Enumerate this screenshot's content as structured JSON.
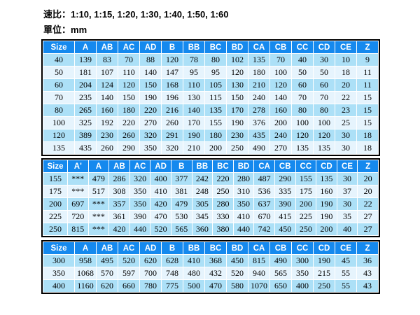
{
  "header": {
    "speed_ratio_label": "速比：",
    "speed_ratio_values": "1:10, 1:15, 1:20, 1:30, 1:40, 1:50, 1:60",
    "unit_label": "單位：",
    "unit_value": "mm"
  },
  "colors": {
    "header_bg": "#1589ee",
    "header_text": "#ffffff",
    "row_medium": "#ace0f7",
    "row_light": "#e6f4fd",
    "table_border": "#000000"
  },
  "tables": [
    {
      "name": "sizes-40-135",
      "headers": [
        "Size",
        "A",
        "AB",
        "AC",
        "AD",
        "B",
        "BB",
        "BC",
        "BD",
        "CA",
        "CB",
        "CC",
        "CD",
        "CE",
        "Z"
      ],
      "rows": [
        [
          "40",
          "139",
          "83",
          "70",
          "88",
          "120",
          "78",
          "80",
          "102",
          "135",
          "70",
          "40",
          "30",
          "10",
          "9"
        ],
        [
          "50",
          "181",
          "107",
          "110",
          "140",
          "147",
          "95",
          "95",
          "120",
          "180",
          "100",
          "50",
          "50",
          "18",
          "11"
        ],
        [
          "60",
          "204",
          "124",
          "120",
          "150",
          "168",
          "110",
          "105",
          "130",
          "210",
          "120",
          "60",
          "60",
          "20",
          "11"
        ],
        [
          "70",
          "235",
          "140",
          "150",
          "190",
          "196",
          "130",
          "115",
          "150",
          "240",
          "140",
          "70",
          "70",
          "22",
          "15"
        ],
        [
          "80",
          "265",
          "160",
          "180",
          "220",
          "216",
          "140",
          "135",
          "170",
          "278",
          "160",
          "80",
          "80",
          "23",
          "15"
        ],
        [
          "100",
          "325",
          "192",
          "220",
          "270",
          "260",
          "170",
          "155",
          "190",
          "376",
          "200",
          "100",
          "100",
          "25",
          "15"
        ],
        [
          "120",
          "389",
          "230",
          "260",
          "320",
          "291",
          "190",
          "180",
          "230",
          "435",
          "240",
          "120",
          "120",
          "30",
          "18"
        ],
        [
          "135",
          "435",
          "260",
          "290",
          "350",
          "320",
          "210",
          "200",
          "250",
          "490",
          "270",
          "135",
          "135",
          "30",
          "18"
        ]
      ]
    },
    {
      "name": "sizes-155-250",
      "headers": [
        "Size",
        "A'",
        "A",
        "AB",
        "AC",
        "AD",
        "B",
        "BB",
        "BC",
        "BD",
        "CA",
        "CB",
        "CC",
        "CD",
        "CE",
        "Z"
      ],
      "rows": [
        [
          "155",
          "***",
          "479",
          "286",
          "320",
          "400",
          "377",
          "242",
          "220",
          "280",
          "487",
          "290",
          "155",
          "135",
          "30",
          "20"
        ],
        [
          "175",
          "***",
          "517",
          "308",
          "350",
          "410",
          "381",
          "248",
          "250",
          "310",
          "536",
          "335",
          "175",
          "160",
          "37",
          "20"
        ],
        [
          "200",
          "697",
          "***",
          "357",
          "350",
          "420",
          "479",
          "305",
          "280",
          "350",
          "637",
          "390",
          "200",
          "190",
          "30",
          "22"
        ],
        [
          "225",
          "720",
          "***",
          "361",
          "390",
          "470",
          "530",
          "345",
          "330",
          "410",
          "670",
          "415",
          "225",
          "190",
          "35",
          "27"
        ],
        [
          "250",
          "815",
          "***",
          "420",
          "440",
          "520",
          "565",
          "360",
          "380",
          "440",
          "742",
          "450",
          "250",
          "200",
          "40",
          "27"
        ]
      ]
    },
    {
      "name": "sizes-300-400",
      "headers": [
        "Size",
        "A",
        "AB",
        "AC",
        "AD",
        "B",
        "BB",
        "BC",
        "BD",
        "CA",
        "CB",
        "CC",
        "CD",
        "CE",
        "Z"
      ],
      "rows": [
        [
          "300",
          "958",
          "495",
          "520",
          "620",
          "628",
          "410",
          "368",
          "450",
          "815",
          "490",
          "300",
          "190",
          "45",
          "36"
        ],
        [
          "350",
          "1068",
          "570",
          "597",
          "700",
          "748",
          "480",
          "432",
          "520",
          "940",
          "565",
          "350",
          "215",
          "55",
          "43"
        ],
        [
          "400",
          "1160",
          "620",
          "660",
          "780",
          "775",
          "500",
          "470",
          "580",
          "1070",
          "650",
          "400",
          "250",
          "55",
          "43"
        ]
      ]
    }
  ]
}
